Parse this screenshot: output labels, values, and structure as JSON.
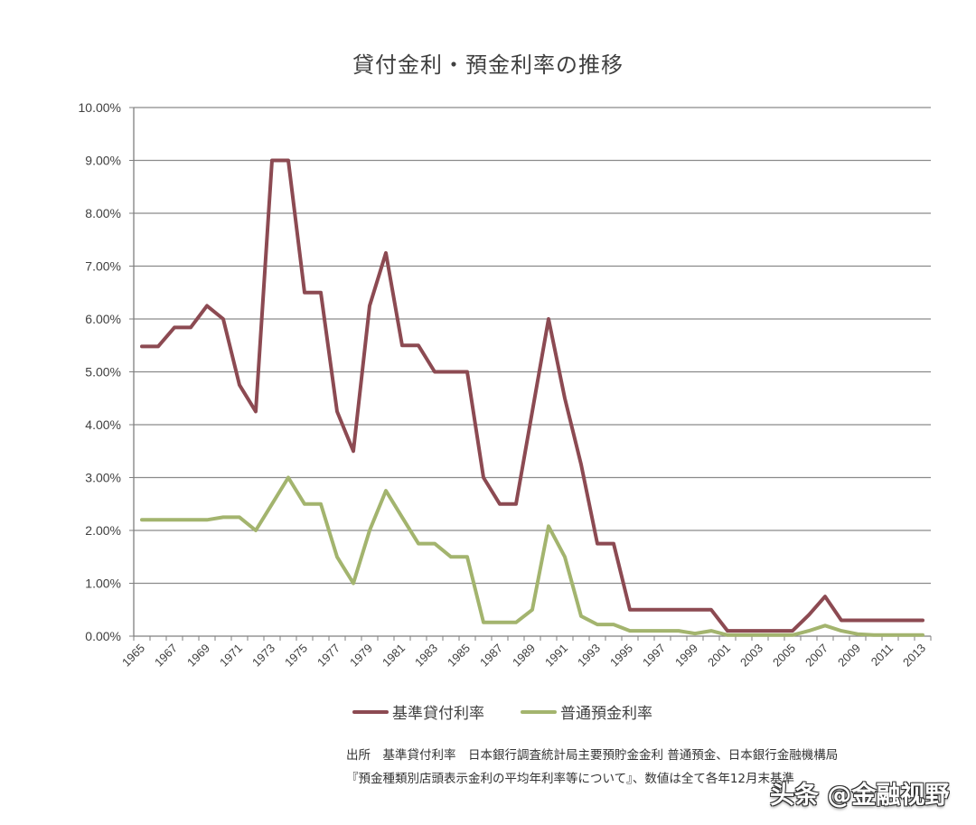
{
  "title": "貸付金利・預金利率の推移",
  "colors": {
    "series1": "#8c4a52",
    "series2": "#a3b46e",
    "grid": "#8a8a8a",
    "axis": "#7f7f7f"
  },
  "legend": [
    {
      "label": "基準貸付利率",
      "color": "#8c4a52"
    },
    {
      "label": "普通預金利率",
      "color": "#a3b46e"
    }
  ],
  "note": {
    "line1": "出所　基準貸付利率　日本銀行調査統計局主要預貯金金利 普通預金、日本銀行金融機構局",
    "line2": "『預金種類別店頭表示金利の平均年利率等について』、数値は全て各年12月末基準"
  },
  "watermark": "头条 @金融视野",
  "chart_data": {
    "type": "line",
    "title": "貸付金利・預金利率の推移",
    "xlabel": "",
    "ylabel": "",
    "ylim": [
      0,
      10
    ],
    "y_ticks": [
      "0.00%",
      "1.00%",
      "2.00%",
      "3.00%",
      "4.00%",
      "5.00%",
      "6.00%",
      "7.00%",
      "8.00%",
      "9.00%",
      "10.00%"
    ],
    "x_tick_labels": [
      "1965",
      "1967",
      "1969",
      "1971",
      "1973",
      "1975",
      "1977",
      "1979",
      "1981",
      "1983",
      "1985",
      "1987",
      "1989",
      "1991",
      "1993",
      "1995",
      "1997",
      "1999",
      "2001",
      "2003",
      "2005",
      "2007",
      "2009",
      "2011",
      "2013"
    ],
    "grid": true,
    "legend_position": "bottom",
    "categories": [
      1965,
      1966,
      1967,
      1968,
      1969,
      1970,
      1971,
      1972,
      1973,
      1974,
      1975,
      1976,
      1977,
      1978,
      1979,
      1980,
      1981,
      1982,
      1983,
      1984,
      1985,
      1986,
      1987,
      1988,
      1989,
      1990,
      1991,
      1992,
      1993,
      1994,
      1995,
      1996,
      1997,
      1998,
      1999,
      2000,
      2001,
      2002,
      2003,
      2004,
      2005,
      2006,
      2007,
      2008,
      2009,
      2010,
      2011,
      2012,
      2013
    ],
    "series": [
      {
        "name": "基準貸付利率",
        "values": [
          5.48,
          5.48,
          5.84,
          5.84,
          6.25,
          6.0,
          4.75,
          4.25,
          9.0,
          9.0,
          6.5,
          6.5,
          4.25,
          3.5,
          6.25,
          7.25,
          5.5,
          5.5,
          5.0,
          5.0,
          5.0,
          3.0,
          2.5,
          2.5,
          4.25,
          6.0,
          4.5,
          3.25,
          1.75,
          1.75,
          0.5,
          0.5,
          0.5,
          0.5,
          0.5,
          0.5,
          0.1,
          0.1,
          0.1,
          0.1,
          0.1,
          0.4,
          0.75,
          0.3,
          0.3,
          0.3,
          0.3,
          0.3,
          0.3
        ]
      },
      {
        "name": "普通預金利率",
        "values": [
          2.2,
          2.2,
          2.2,
          2.2,
          2.2,
          2.25,
          2.25,
          2.0,
          2.5,
          3.0,
          2.5,
          2.5,
          1.5,
          1.0,
          2.0,
          2.75,
          2.25,
          1.75,
          1.75,
          1.5,
          1.5,
          0.26,
          0.26,
          0.26,
          0.5,
          2.08,
          1.5,
          0.38,
          0.22,
          0.22,
          0.1,
          0.1,
          0.1,
          0.1,
          0.05,
          0.1,
          0.02,
          0.02,
          0.02,
          0.02,
          0.02,
          0.1,
          0.2,
          0.1,
          0.04,
          0.02,
          0.02,
          0.02,
          0.02
        ]
      }
    ]
  }
}
